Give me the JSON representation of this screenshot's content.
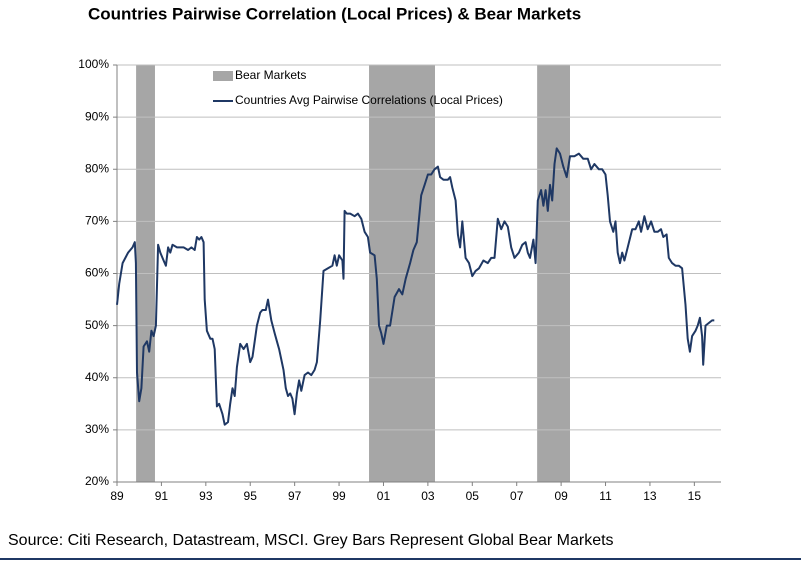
{
  "chart_data": {
    "type": "line",
    "title": "Countries Pairwise Correlation (Local Prices) & Bear Markets",
    "source": "Source: Citi Research, Datastream, MSCI. Grey Bars Represent Global Bear Markets",
    "xlim": [
      1989,
      2016.2
    ],
    "ylim": [
      20,
      100
    ],
    "xticks": [
      {
        "value": 1989,
        "label": "89"
      },
      {
        "value": 1991,
        "label": "91"
      },
      {
        "value": 1993,
        "label": "93"
      },
      {
        "value": 1995,
        "label": "95"
      },
      {
        "value": 1997,
        "label": "97"
      },
      {
        "value": 1999,
        "label": "99"
      },
      {
        "value": 2001,
        "label": "01"
      },
      {
        "value": 2003,
        "label": "03"
      },
      {
        "value": 2005,
        "label": "05"
      },
      {
        "value": 2007,
        "label": "07"
      },
      {
        "value": 2009,
        "label": "09"
      },
      {
        "value": 2011,
        "label": "11"
      },
      {
        "value": 2013,
        "label": "13"
      },
      {
        "value": 2015,
        "label": "15"
      }
    ],
    "yticks": [
      {
        "value": 20,
        "label": "20%"
      },
      {
        "value": 30,
        "label": "30%"
      },
      {
        "value": 40,
        "label": "40%"
      },
      {
        "value": 50,
        "label": "50%"
      },
      {
        "value": 60,
        "label": "60%"
      },
      {
        "value": 70,
        "label": "70%"
      },
      {
        "value": 80,
        "label": "80%"
      },
      {
        "value": 90,
        "label": "90%"
      },
      {
        "value": 100,
        "label": "100%"
      }
    ],
    "grid": true,
    "legend": "top-left",
    "bear_markets": {
      "name": "Bear Markets",
      "color": "#a6a6a6",
      "periods": [
        [
          1989.86,
          1990.71
        ],
        [
          2000.35,
          2003.32
        ],
        [
          2007.92,
          2009.4
        ]
      ]
    },
    "series": [
      {
        "name": "Countries Avg Pairwise Correlations (Local Prices)",
        "color": "#1f3864",
        "x": [
          1989.0,
          1989.1,
          1989.25,
          1989.5,
          1989.7,
          1989.8,
          1989.85,
          1989.9,
          1990.0,
          1990.1,
          1990.2,
          1990.35,
          1990.45,
          1990.55,
          1990.65,
          1990.75,
          1990.85,
          1990.95,
          1991.1,
          1991.2,
          1991.3,
          1991.4,
          1991.5,
          1991.7,
          1992.0,
          1992.2,
          1992.35,
          1992.5,
          1992.6,
          1992.7,
          1992.8,
          1992.9,
          1992.95,
          1993.05,
          1993.2,
          1993.3,
          1993.4,
          1993.5,
          1993.6,
          1993.75,
          1993.85,
          1994.0,
          1994.1,
          1994.2,
          1994.3,
          1994.4,
          1994.55,
          1994.7,
          1994.85,
          1995.0,
          1995.1,
          1995.2,
          1995.3,
          1995.45,
          1995.55,
          1995.7,
          1995.8,
          1995.95,
          1996.1,
          1996.2,
          1996.3,
          1996.4,
          1996.5,
          1996.6,
          1996.7,
          1996.8,
          1996.9,
          1997.0,
          1997.1,
          1997.2,
          1997.3,
          1997.45,
          1997.6,
          1997.75,
          1997.9,
          1998.0,
          1998.15,
          1998.3,
          1998.5,
          1998.7,
          1998.8,
          1998.9,
          1999.0,
          1999.15,
          1999.2,
          1999.25,
          1999.35,
          1999.5,
          1999.7,
          1999.85,
          2000.0,
          2000.15,
          2000.3,
          2000.4,
          2000.6,
          2000.7,
          2000.8,
          2000.9,
          2001.0,
          2001.15,
          2001.3,
          2001.5,
          2001.7,
          2001.85,
          2002.0,
          2002.2,
          2002.35,
          2002.5,
          2002.7,
          2002.85,
          2003.0,
          2003.15,
          2003.3,
          2003.45,
          2003.55,
          2003.7,
          2003.9,
          2004.0,
          2004.1,
          2004.25,
          2004.35,
          2004.45,
          2004.55,
          2004.7,
          2004.85,
          2005.0,
          2005.15,
          2005.3,
          2005.5,
          2005.7,
          2005.85,
          2006.0,
          2006.15,
          2006.3,
          2006.45,
          2006.6,
          2006.75,
          2006.9,
          2007.1,
          2007.25,
          2007.4,
          2007.5,
          2007.6,
          2007.75,
          2007.85,
          2007.95,
          2008.1,
          2008.2,
          2008.3,
          2008.4,
          2008.5,
          2008.6,
          2008.7,
          2008.8,
          2008.95,
          2009.1,
          2009.25,
          2009.4,
          2009.6,
          2009.8,
          2010.0,
          2010.2,
          2010.35,
          2010.5,
          2010.7,
          2010.85,
          2011.0,
          2011.1,
          2011.2,
          2011.35,
          2011.45,
          2011.55,
          2011.65,
          2011.75,
          2011.85,
          2012.0,
          2012.2,
          2012.35,
          2012.5,
          2012.6,
          2012.75,
          2012.9,
          2013.05,
          2013.2,
          2013.35,
          2013.5,
          2013.6,
          2013.75,
          2013.85,
          2014.0,
          2014.15,
          2014.3,
          2014.45,
          2014.6,
          2014.7,
          2014.8,
          2014.9,
          2015.05,
          2015.15,
          2015.25,
          2015.35,
          2015.4,
          2015.5,
          2015.65,
          2015.8,
          2015.9
        ],
        "values": [
          54,
          58,
          62,
          64,
          65,
          66,
          62,
          41,
          35.5,
          38,
          46,
          47,
          45,
          49,
          48,
          50,
          65.5,
          64,
          62.5,
          61.5,
          65,
          64,
          65.5,
          65,
          65,
          64.5,
          65,
          64.5,
          67,
          66.5,
          67,
          66,
          55,
          49,
          47.5,
          47.5,
          45.5,
          34.5,
          35,
          33,
          31,
          31.5,
          35,
          38,
          36.5,
          42,
          46.5,
          45.5,
          46.5,
          43,
          44,
          47,
          50,
          52.5,
          53,
          53,
          55,
          51,
          48.5,
          47,
          45.5,
          43.5,
          41.5,
          38,
          36.5,
          37,
          36,
          33,
          37,
          39.5,
          37.5,
          40.5,
          41,
          40.5,
          41.5,
          43,
          51,
          60.5,
          61,
          61.5,
          63.5,
          61.5,
          63.5,
          62.5,
          59,
          72,
          71.5,
          71.5,
          71,
          71.5,
          70.5,
          68,
          67,
          64,
          63.5,
          59,
          50,
          48.5,
          46.5,
          50,
          50,
          55.5,
          57,
          56,
          59,
          62,
          64.5,
          66,
          75,
          77,
          79,
          79,
          80,
          80.5,
          78.5,
          78,
          78,
          78.5,
          76.5,
          74,
          67.5,
          65,
          70,
          63,
          62,
          59.5,
          60.5,
          61,
          62.5,
          62,
          63,
          63,
          70.5,
          68.5,
          70,
          69,
          65,
          63,
          64,
          65.5,
          66,
          64,
          63,
          66.5,
          62,
          74,
          76,
          73,
          76,
          72,
          77,
          74,
          81,
          84,
          83,
          80.5,
          78.5,
          82.5,
          82.5,
          83,
          82,
          82,
          80,
          81,
          80,
          80,
          79,
          75,
          70,
          68,
          70,
          64,
          62,
          64,
          62.5,
          65,
          68.5,
          68.5,
          70,
          68,
          71,
          68.5,
          70,
          68,
          68,
          68.5,
          67,
          67.5,
          63,
          62,
          61.5,
          61.5,
          61,
          54,
          47.5,
          45,
          48,
          49,
          50,
          51.5,
          48,
          42.5,
          50,
          50.5,
          51,
          51
        ]
      }
    ]
  }
}
